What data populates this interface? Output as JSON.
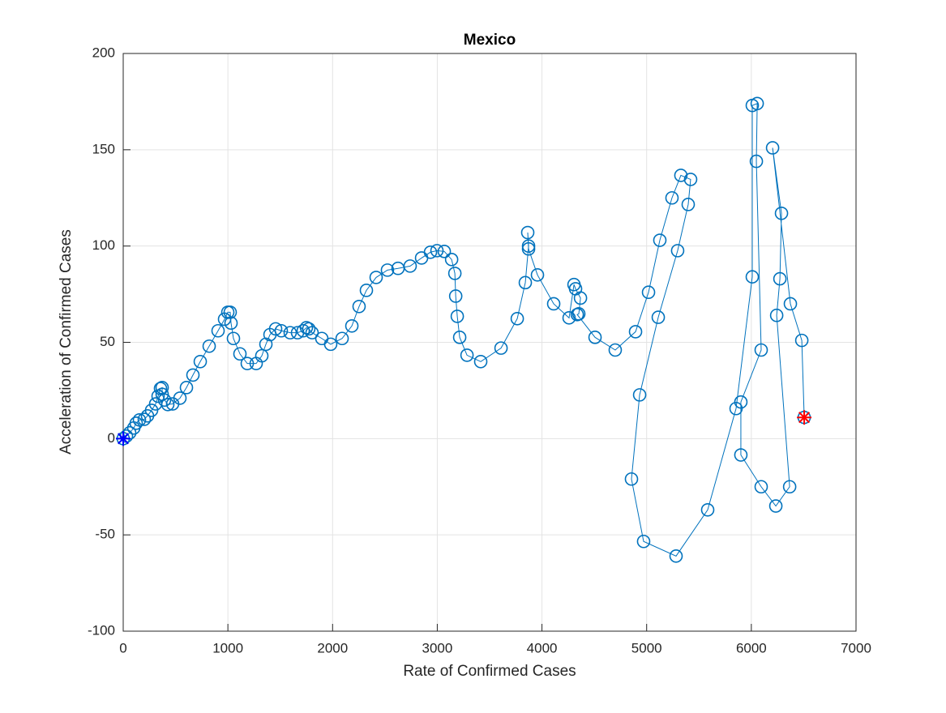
{
  "chart_data": {
    "type": "line",
    "title": "Mexico",
    "x_label": "Rate of Confirmed Cases",
    "y_label": "Acceleration of Confirmed Cases",
    "series": [
      {
        "color": "#0072bd",
        "x": [
          0,
          31,
          62,
          101,
          124,
          155,
          201,
          232,
          271,
          310,
          333,
          356,
          372,
          372,
          395,
          426,
          472,
          542,
          604,
          666,
          736,
          821,
          906,
          968,
          999,
          1022,
          1030,
          1053,
          1115,
          1185,
          1270,
          1324,
          1363,
          1402,
          1456,
          1510,
          1595,
          1665,
          1719,
          1750,
          1773,
          1804,
          1897,
          1982,
          2091,
          2184,
          2253,
          2323,
          2416,
          2524,
          2625,
          2741,
          2850,
          2935,
          2997,
          3067,
          3137,
          3168,
          3176,
          3191,
          3214,
          3284,
          3415,
          3609,
          3764,
          3841,
          3872,
          3864,
          3872,
          3957,
          4112,
          4259,
          4306,
          4321,
          4368,
          4352,
          4337,
          4507,
          4700,
          4894,
          5018,
          5126,
          5242,
          5327,
          5420,
          5397,
          5296,
          5111,
          4933,
          4855,
          4971,
          5281,
          5583,
          5854,
          6009,
          6009,
          6056,
          6048,
          6094,
          5900,
          5900,
          6094,
          6234,
          6366,
          6242,
          6273,
          6288,
          6203,
          6373,
          6482,
          6505
        ],
        "values": [
          0,
          1.3,
          3,
          5.5,
          8,
          9.7,
          10,
          11.8,
          14.7,
          18,
          22,
          26,
          26.5,
          23,
          20,
          17.7,
          18,
          21,
          26.5,
          33,
          40,
          48,
          56,
          62,
          65.6,
          65.6,
          60,
          52,
          44,
          39,
          39,
          43,
          49,
          54,
          57,
          56,
          55,
          55,
          56,
          57.6,
          57,
          55,
          52,
          49,
          52,
          58.5,
          68.6,
          77,
          83.7,
          87.5,
          88.4,
          89.6,
          93.8,
          96.8,
          97.6,
          97.2,
          93,
          85.8,
          74,
          63.5,
          52.6,
          43.3,
          40,
          47,
          62.3,
          81,
          100,
          107,
          98.5,
          85,
          70,
          62.7,
          80,
          77.8,
          73,
          64.8,
          64.4,
          52.6,
          46,
          55.5,
          76,
          103,
          125,
          136.7,
          134.6,
          121.6,
          97.6,
          63,
          22.7,
          -21,
          -53.4,
          -61,
          -37,
          15.6,
          84,
          173,
          174,
          144,
          46,
          19,
          -8.5,
          -25,
          -35,
          -25,
          64,
          83,
          117,
          151,
          70,
          51,
          11
        ]
      }
    ],
    "start_color": "#0000ff",
    "end_color": "#ff0000",
    "xlim": [
      0,
      7000
    ],
    "xticks": [
      0,
      1000,
      2000,
      3000,
      4000,
      5000,
      6000,
      7000
    ],
    "ylim": [
      -100,
      200
    ],
    "yticks": [
      -100,
      -50,
      0,
      50,
      100,
      150,
      200
    ],
    "grid": true
  }
}
